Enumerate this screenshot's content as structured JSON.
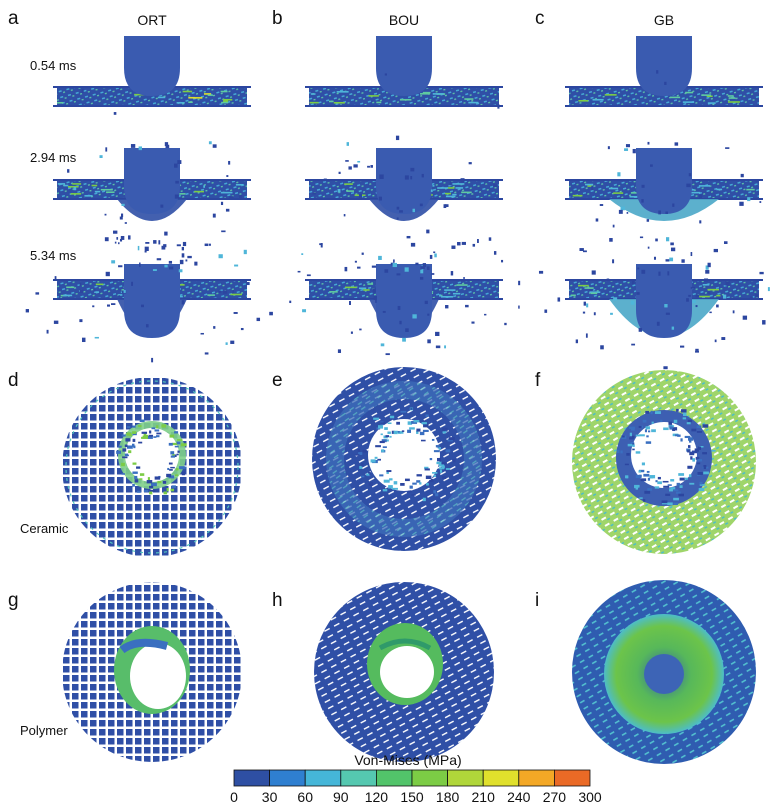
{
  "panel_labels": [
    "a",
    "b",
    "c",
    "d",
    "e",
    "f",
    "g",
    "h",
    "i"
  ],
  "columns": [
    "ORT",
    "BOU",
    "GB"
  ],
  "time_labels": [
    "0.54 ms",
    "2.94 ms",
    "5.34 ms"
  ],
  "row_labels": {
    "ceramic": "Ceramic",
    "polymer": "Polymer"
  },
  "colorbar": {
    "title": "Von-Mises (MPa)",
    "ticks": [
      "0",
      "30",
      "60",
      "90",
      "120",
      "150",
      "180",
      "210",
      "240",
      "270",
      "300"
    ],
    "colors": [
      "#2e4fa3",
      "#2f7fd0",
      "#45b6d8",
      "#55c8b0",
      "#52c46a",
      "#7ccc45",
      "#b0d63a",
      "#e0e02c",
      "#f3a826",
      "#ea6a26",
      "#e0302a"
    ]
  },
  "colors": {
    "projectile": "#3a5bb0",
    "plate_edge": "#2c46a0",
    "mesh_base": "#2f4fa6"
  }
}
